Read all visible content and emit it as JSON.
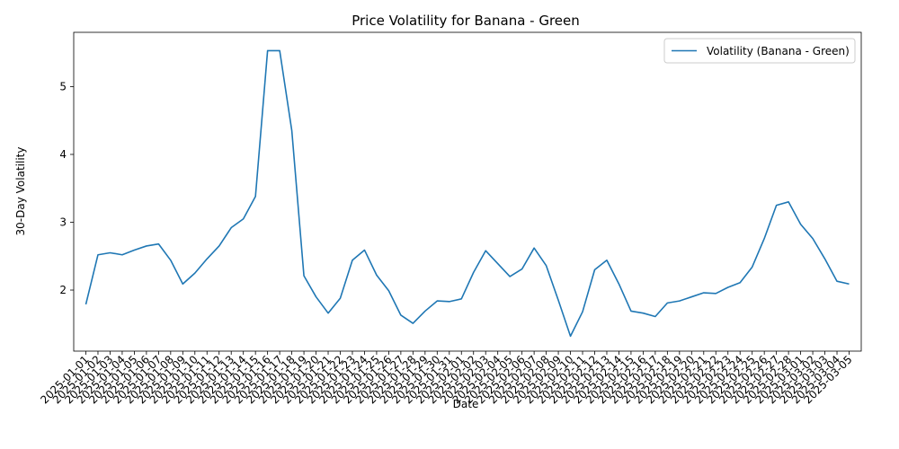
{
  "chart_data": {
    "type": "line",
    "title": "Price Volatility for Banana - Green",
    "xlabel": "Date",
    "ylabel": "30-Day Volatility",
    "ylim": [
      1.1,
      5.8
    ],
    "yticks": [
      2,
      3,
      4,
      5
    ],
    "grid": false,
    "legend_position": "top-right",
    "line_color": "#1f77b4",
    "x": [
      "2025-01-01",
      "2025-01-02",
      "2025-01-03",
      "2025-01-04",
      "2025-01-05",
      "2025-01-06",
      "2025-01-07",
      "2025-01-08",
      "2025-01-09",
      "2025-01-10",
      "2025-01-11",
      "2025-01-12",
      "2025-01-13",
      "2025-01-14",
      "2025-01-15",
      "2025-01-16",
      "2025-01-17",
      "2025-01-18",
      "2025-01-19",
      "2025-01-20",
      "2025-01-21",
      "2025-01-22",
      "2025-01-23",
      "2025-01-24",
      "2025-01-25",
      "2025-01-26",
      "2025-01-27",
      "2025-01-28",
      "2025-01-29",
      "2025-01-30",
      "2025-01-31",
      "2025-02-01",
      "2025-02-02",
      "2025-02-03",
      "2025-02-04",
      "2025-02-05",
      "2025-02-06",
      "2025-02-07",
      "2025-02-08",
      "2025-02-09",
      "2025-02-10",
      "2025-02-11",
      "2025-02-12",
      "2025-02-13",
      "2025-02-14",
      "2025-02-15",
      "2025-02-16",
      "2025-02-17",
      "2025-02-18",
      "2025-02-19",
      "2025-02-20",
      "2025-02-21",
      "2025-02-22",
      "2025-02-23",
      "2025-02-24",
      "2025-02-25",
      "2025-02-26",
      "2025-02-27",
      "2025-02-28",
      "2025-03-01",
      "2025-03-02",
      "2025-03-03",
      "2025-03-04",
      "2025-03-05"
    ],
    "series": [
      {
        "name": "Volatility (Banana - Green)",
        "values": [
          1.79,
          2.52,
          2.55,
          2.52,
          2.59,
          2.65,
          2.68,
          2.44,
          2.09,
          2.25,
          2.46,
          2.65,
          2.92,
          3.05,
          3.38,
          5.53,
          5.53,
          4.35,
          2.21,
          1.9,
          1.66,
          1.88,
          2.44,
          2.59,
          2.22,
          1.99,
          1.63,
          1.51,
          1.69,
          1.84,
          1.83,
          1.87,
          2.26,
          2.58,
          2.39,
          2.2,
          2.31,
          2.62,
          2.36,
          1.85,
          1.32,
          1.68,
          2.3,
          2.44,
          2.09,
          1.69,
          1.66,
          1.61,
          1.81,
          1.84,
          1.9,
          1.96,
          1.95,
          2.04,
          2.11,
          2.34,
          2.76,
          3.25,
          3.3,
          2.97,
          2.76,
          2.46,
          2.13,
          2.09
        ]
      }
    ]
  }
}
